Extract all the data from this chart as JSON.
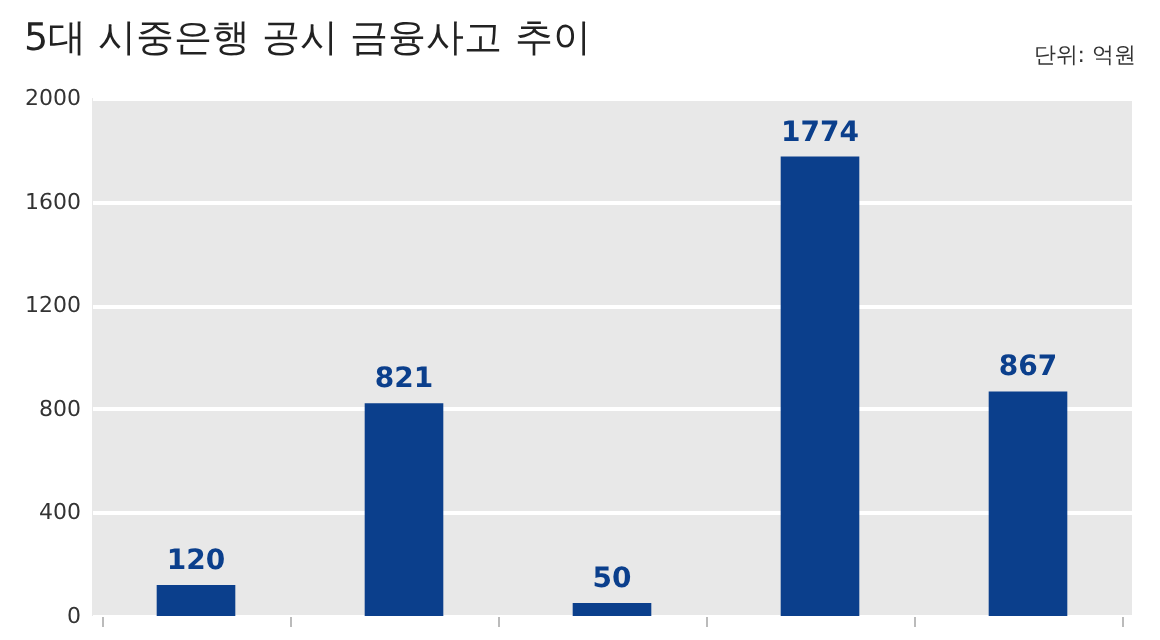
{
  "chart_data": {
    "type": "bar",
    "title": "5대 시중은행 공시 금융사고 추이",
    "annotations": [
      "단위: 억원"
    ],
    "categories": [
      null,
      null,
      null,
      null,
      null
    ],
    "values": [
      120,
      821,
      50,
      1774,
      867
    ],
    "color": "#0b3f8c",
    "ylim": [
      0,
      2000
    ],
    "yticks": [
      0,
      400,
      800,
      1200,
      1600,
      2000
    ],
    "grid": "y",
    "data_labels": true,
    "tick_labels": "y"
  }
}
